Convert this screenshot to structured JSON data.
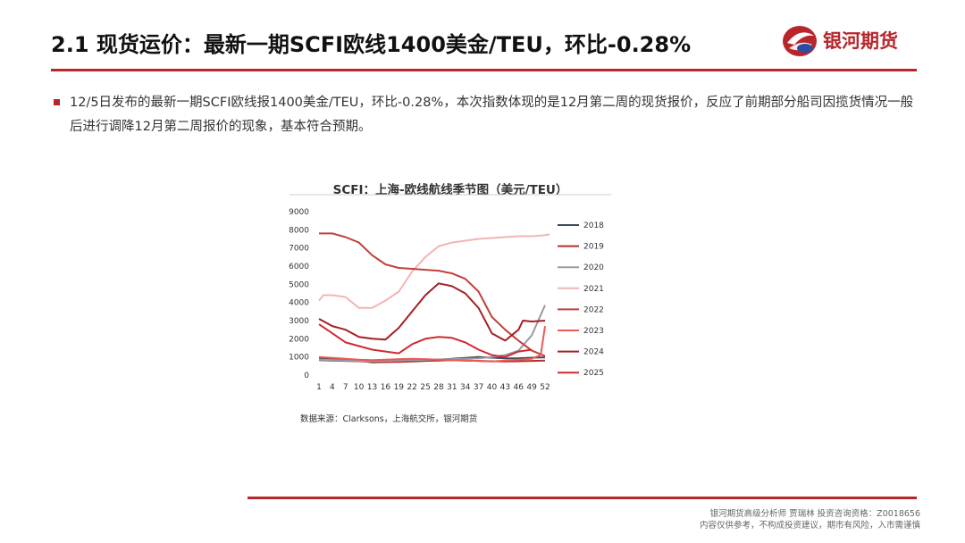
{
  "header": {
    "title": "2.1 现货运价：最新一期SCFI欧线1400美金/TEU，环比-0.28%",
    "logo_text": "银河期货"
  },
  "body": {
    "bullet": "12/5日发布的最新一期SCFI欧线报1400美金/TEU，环比-0.28%，本次指数体现的是12月第二周的现货报价，反应了前期部分船司因揽货情况一般后进行调降12月第二周报价的现象，基本符合预期。"
  },
  "source": "数据来源：Clarksons，上海航交所，银河期货",
  "footer": {
    "line1": "银河期货高级分析师 贾瑞林 投资咨询资格：Z0018656",
    "line2": "内容仅供参考，不构成投资建议，期市有风险，入市需谨慎"
  },
  "colors": {
    "brand": "#b8262c"
  },
  "chart_data": {
    "type": "line",
    "title": "SCFI：上海-欧线航线季节图（美元/TEU）",
    "xlabel": "",
    "ylabel": "",
    "ylim": [
      0,
      9000
    ],
    "xlim": [
      1,
      53
    ],
    "x_ticks": [
      1,
      4,
      7,
      10,
      13,
      16,
      19,
      22,
      25,
      28,
      31,
      34,
      37,
      40,
      43,
      46,
      49,
      52
    ],
    "y_ticks": [
      0,
      1000,
      2000,
      3000,
      4000,
      5000,
      6000,
      7000,
      8000,
      9000
    ],
    "legend_position": "right",
    "grid": false,
    "series": [
      {
        "name": "2018",
        "color": "#3e4a5e",
        "points": [
          [
            1,
            950
          ],
          [
            4,
            880
          ],
          [
            7,
            850
          ],
          [
            10,
            800
          ],
          [
            13,
            700
          ],
          [
            16,
            720
          ],
          [
            19,
            780
          ],
          [
            22,
            800
          ],
          [
            25,
            820
          ],
          [
            28,
            850
          ],
          [
            31,
            900
          ],
          [
            34,
            950
          ],
          [
            37,
            1000
          ],
          [
            40,
            960
          ],
          [
            43,
            920
          ],
          [
            46,
            930
          ],
          [
            49,
            960
          ],
          [
            52,
            980
          ]
        ]
      },
      {
        "name": "2019",
        "color": "#b5302f",
        "points": [
          [
            1,
            820
          ],
          [
            4,
            800
          ],
          [
            7,
            780
          ],
          [
            10,
            760
          ],
          [
            13,
            740
          ],
          [
            16,
            720
          ],
          [
            19,
            730
          ],
          [
            22,
            750
          ],
          [
            25,
            780
          ],
          [
            28,
            800
          ],
          [
            31,
            820
          ],
          [
            34,
            800
          ],
          [
            37,
            780
          ],
          [
            40,
            760
          ],
          [
            43,
            750
          ],
          [
            46,
            760
          ],
          [
            49,
            780
          ],
          [
            52,
            800
          ]
        ]
      },
      {
        "name": "2020",
        "color": "#9a9aa2",
        "points": [
          [
            1,
            850
          ],
          [
            4,
            830
          ],
          [
            7,
            800
          ],
          [
            10,
            780
          ],
          [
            13,
            760
          ],
          [
            16,
            780
          ],
          [
            19,
            800
          ],
          [
            22,
            820
          ],
          [
            25,
            840
          ],
          [
            28,
            860
          ],
          [
            31,
            880
          ],
          [
            34,
            900
          ],
          [
            37,
            920
          ],
          [
            40,
            1000
          ],
          [
            43,
            1100
          ],
          [
            46,
            1350
          ],
          [
            49,
            2200
          ],
          [
            52,
            3850
          ]
        ]
      },
      {
        "name": "2021",
        "color": "#f1b5b2",
        "points": [
          [
            1,
            4100
          ],
          [
            2,
            4400
          ],
          [
            4,
            4400
          ],
          [
            7,
            4300
          ],
          [
            10,
            3700
          ],
          [
            13,
            3700
          ],
          [
            16,
            4100
          ],
          [
            19,
            4600
          ],
          [
            22,
            5700
          ],
          [
            25,
            6500
          ],
          [
            28,
            7100
          ],
          [
            31,
            7300
          ],
          [
            34,
            7400
          ],
          [
            37,
            7500
          ],
          [
            40,
            7550
          ],
          [
            43,
            7600
          ],
          [
            46,
            7650
          ],
          [
            49,
            7650
          ],
          [
            52,
            7700
          ],
          [
            53,
            7750
          ]
        ]
      },
      {
        "name": "2022",
        "color": "#c2403a",
        "points": [
          [
            1,
            7800
          ],
          [
            4,
            7800
          ],
          [
            7,
            7600
          ],
          [
            10,
            7300
          ],
          [
            13,
            6600
          ],
          [
            16,
            6100
          ],
          [
            19,
            5900
          ],
          [
            22,
            5850
          ],
          [
            25,
            5800
          ],
          [
            28,
            5750
          ],
          [
            31,
            5600
          ],
          [
            34,
            5300
          ],
          [
            37,
            4600
          ],
          [
            40,
            3200
          ],
          [
            43,
            2500
          ],
          [
            46,
            1900
          ],
          [
            49,
            1350
          ],
          [
            52,
            1050
          ]
        ]
      },
      {
        "name": "2023",
        "color": "#e95a55",
        "points": [
          [
            1,
            1000
          ],
          [
            4,
            950
          ],
          [
            7,
            900
          ],
          [
            10,
            850
          ],
          [
            13,
            820
          ],
          [
            16,
            850
          ],
          [
            19,
            880
          ],
          [
            22,
            900
          ],
          [
            25,
            880
          ],
          [
            28,
            850
          ],
          [
            31,
            820
          ],
          [
            34,
            800
          ],
          [
            37,
            780
          ],
          [
            40,
            750
          ],
          [
            43,
            800
          ],
          [
            46,
            850
          ],
          [
            49,
            900
          ],
          [
            51,
            1100
          ],
          [
            52,
            2700
          ]
        ]
      },
      {
        "name": "2024",
        "color": "#a61e23",
        "points": [
          [
            1,
            3100
          ],
          [
            4,
            2700
          ],
          [
            7,
            2500
          ],
          [
            10,
            2100
          ],
          [
            13,
            2000
          ],
          [
            16,
            1950
          ],
          [
            19,
            2600
          ],
          [
            22,
            3500
          ],
          [
            25,
            4400
          ],
          [
            28,
            5050
          ],
          [
            31,
            4900
          ],
          [
            34,
            4500
          ],
          [
            37,
            3700
          ],
          [
            40,
            2300
          ],
          [
            43,
            1900
          ],
          [
            46,
            2500
          ],
          [
            47,
            3000
          ],
          [
            49,
            2950
          ],
          [
            52,
            3000
          ]
        ]
      },
      {
        "name": "2025",
        "color": "#d02a2f",
        "points": [
          [
            1,
            2800
          ],
          [
            4,
            2300
          ],
          [
            7,
            1800
          ],
          [
            10,
            1600
          ],
          [
            13,
            1400
          ],
          [
            16,
            1300
          ],
          [
            19,
            1200
          ],
          [
            22,
            1700
          ],
          [
            25,
            2000
          ],
          [
            28,
            2100
          ],
          [
            31,
            2050
          ],
          [
            34,
            1800
          ],
          [
            37,
            1400
          ],
          [
            40,
            1100
          ],
          [
            43,
            1000
          ],
          [
            46,
            1300
          ],
          [
            49,
            1400
          ]
        ]
      }
    ]
  }
}
